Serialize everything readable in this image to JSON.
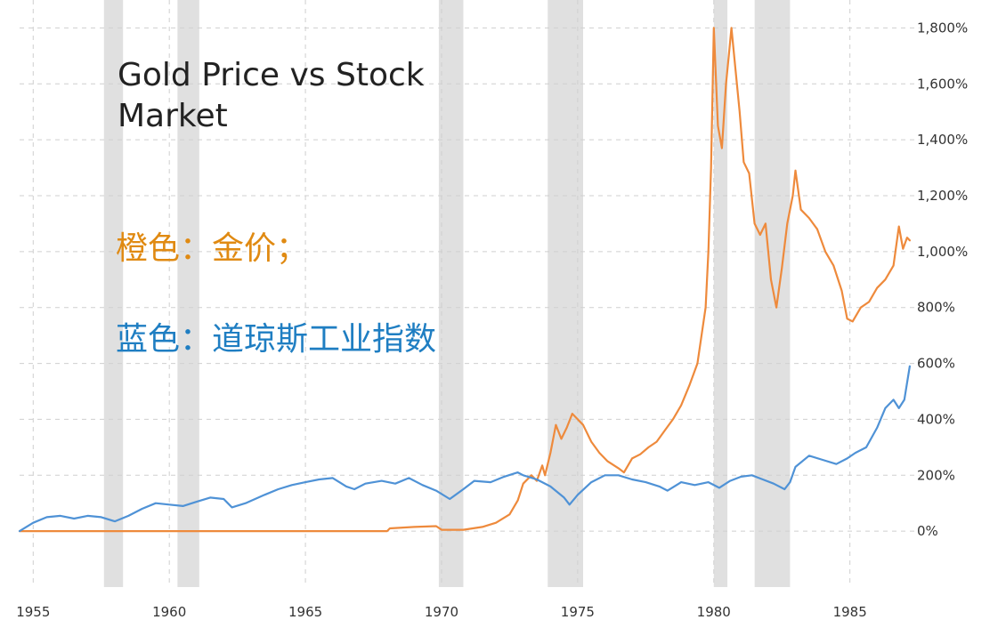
{
  "header": {
    "title": "Gold Price vs Stock Market"
  },
  "legend": {
    "gold_label": "橙色：金价；",
    "dow_label": "蓝色：道琼斯工业指数"
  },
  "colors": {
    "gold": "#ee8a3c",
    "dow": "#4f92d6",
    "recession": "#e0e0e0",
    "grid": "#cfcfcf",
    "gold_text": "#e08a12",
    "dow_text": "#1f7ec2"
  },
  "chart_data": {
    "type": "line",
    "title": "Gold Price vs Stock Market",
    "xlabel": "",
    "ylabel": "",
    "xlim": [
      1954.5,
      1987.3
    ],
    "ylim": [
      -200,
      1900
    ],
    "x_ticks": [
      "1955",
      "1960",
      "1965",
      "1970",
      "1975",
      "1980",
      "1985"
    ],
    "y_ticks": [
      "0%",
      "200%",
      "400%",
      "600%",
      "800%",
      "1,000%",
      "1,200%",
      "1,400%",
      "1,600%",
      "1,800%"
    ],
    "y_axis_side": "right",
    "grid": true,
    "recessions": [
      [
        1957.6,
        1958.3
      ],
      [
        1960.3,
        1961.1
      ],
      [
        1969.9,
        1970.8
      ],
      [
        1973.9,
        1975.2
      ],
      [
        1980.0,
        1980.5
      ],
      [
        1981.5,
        1982.8
      ]
    ],
    "series": [
      {
        "name": "橙色：金价",
        "color": "#ee8a3c",
        "points": [
          [
            1954.5,
            0
          ],
          [
            1960,
            0
          ],
          [
            1965,
            0
          ],
          [
            1968.0,
            0
          ],
          [
            1968.1,
            10
          ],
          [
            1969.0,
            15
          ],
          [
            1969.8,
            18
          ],
          [
            1970.0,
            5
          ],
          [
            1970.8,
            5
          ],
          [
            1971.5,
            15
          ],
          [
            1972.0,
            30
          ],
          [
            1972.5,
            60
          ],
          [
            1972.8,
            110
          ],
          [
            1973.0,
            170
          ],
          [
            1973.3,
            200
          ],
          [
            1973.5,
            180
          ],
          [
            1973.7,
            235
          ],
          [
            1973.8,
            200
          ],
          [
            1974.0,
            280
          ],
          [
            1974.2,
            380
          ],
          [
            1974.4,
            330
          ],
          [
            1974.6,
            370
          ],
          [
            1974.8,
            420
          ],
          [
            1975.0,
            400
          ],
          [
            1975.2,
            380
          ],
          [
            1975.5,
            320
          ],
          [
            1975.8,
            280
          ],
          [
            1976.1,
            250
          ],
          [
            1976.5,
            225
          ],
          [
            1976.7,
            210
          ],
          [
            1977.0,
            260
          ],
          [
            1977.3,
            275
          ],
          [
            1977.6,
            300
          ],
          [
            1977.9,
            320
          ],
          [
            1978.2,
            360
          ],
          [
            1978.5,
            400
          ],
          [
            1978.8,
            450
          ],
          [
            1979.1,
            520
          ],
          [
            1979.4,
            600
          ],
          [
            1979.7,
            800
          ],
          [
            1979.8,
            1000
          ],
          [
            1979.9,
            1300
          ],
          [
            1980.0,
            1800
          ],
          [
            1980.15,
            1450
          ],
          [
            1980.3,
            1370
          ],
          [
            1980.45,
            1600
          ],
          [
            1980.55,
            1700
          ],
          [
            1980.65,
            1800
          ],
          [
            1980.8,
            1650
          ],
          [
            1980.95,
            1500
          ],
          [
            1981.1,
            1320
          ],
          [
            1981.3,
            1280
          ],
          [
            1981.5,
            1100
          ],
          [
            1981.7,
            1060
          ],
          [
            1981.9,
            1100
          ],
          [
            1982.1,
            900
          ],
          [
            1982.3,
            800
          ],
          [
            1982.5,
            940
          ],
          [
            1982.7,
            1100
          ],
          [
            1982.9,
            1200
          ],
          [
            1983.0,
            1290
          ],
          [
            1983.2,
            1150
          ],
          [
            1983.5,
            1120
          ],
          [
            1983.8,
            1080
          ],
          [
            1984.1,
            1000
          ],
          [
            1984.4,
            950
          ],
          [
            1984.7,
            860
          ],
          [
            1984.9,
            760
          ],
          [
            1985.1,
            750
          ],
          [
            1985.4,
            800
          ],
          [
            1985.7,
            820
          ],
          [
            1986.0,
            870
          ],
          [
            1986.3,
            900
          ],
          [
            1986.6,
            950
          ],
          [
            1986.8,
            1090
          ],
          [
            1986.95,
            1010
          ],
          [
            1987.1,
            1050
          ],
          [
            1987.2,
            1040
          ]
        ]
      },
      {
        "name": "蓝色：道琼斯工业指数",
        "color": "#4f92d6",
        "points": [
          [
            1954.5,
            0
          ],
          [
            1955.0,
            30
          ],
          [
            1955.5,
            50
          ],
          [
            1956.0,
            55
          ],
          [
            1956.5,
            45
          ],
          [
            1957.0,
            55
          ],
          [
            1957.5,
            50
          ],
          [
            1958.0,
            35
          ],
          [
            1958.5,
            55
          ],
          [
            1959.0,
            80
          ],
          [
            1959.5,
            100
          ],
          [
            1960.0,
            95
          ],
          [
            1960.5,
            90
          ],
          [
            1961.0,
            105
          ],
          [
            1961.5,
            120
          ],
          [
            1962.0,
            115
          ],
          [
            1962.3,
            85
          ],
          [
            1962.8,
            100
          ],
          [
            1963.5,
            130
          ],
          [
            1964.0,
            150
          ],
          [
            1964.5,
            165
          ],
          [
            1965.0,
            175
          ],
          [
            1965.5,
            185
          ],
          [
            1966.0,
            190
          ],
          [
            1966.5,
            160
          ],
          [
            1966.8,
            150
          ],
          [
            1967.2,
            170
          ],
          [
            1967.8,
            180
          ],
          [
            1968.3,
            170
          ],
          [
            1968.8,
            190
          ],
          [
            1969.3,
            165
          ],
          [
            1969.8,
            145
          ],
          [
            1970.3,
            115
          ],
          [
            1970.8,
            150
          ],
          [
            1971.2,
            180
          ],
          [
            1971.8,
            175
          ],
          [
            1972.3,
            195
          ],
          [
            1972.8,
            210
          ],
          [
            1973.0,
            200
          ],
          [
            1973.5,
            185
          ],
          [
            1974.0,
            160
          ],
          [
            1974.5,
            120
          ],
          [
            1974.7,
            95
          ],
          [
            1975.0,
            130
          ],
          [
            1975.5,
            175
          ],
          [
            1976.0,
            200
          ],
          [
            1976.5,
            200
          ],
          [
            1977.0,
            185
          ],
          [
            1977.5,
            175
          ],
          [
            1978.0,
            160
          ],
          [
            1978.3,
            145
          ],
          [
            1978.8,
            175
          ],
          [
            1979.3,
            165
          ],
          [
            1979.8,
            175
          ],
          [
            1980.2,
            155
          ],
          [
            1980.6,
            180
          ],
          [
            1981.0,
            195
          ],
          [
            1981.4,
            200
          ],
          [
            1981.8,
            185
          ],
          [
            1982.2,
            170
          ],
          [
            1982.6,
            150
          ],
          [
            1982.8,
            175
          ],
          [
            1983.0,
            230
          ],
          [
            1983.5,
            270
          ],
          [
            1984.0,
            255
          ],
          [
            1984.5,
            240
          ],
          [
            1984.9,
            260
          ],
          [
            1985.2,
            280
          ],
          [
            1985.6,
            300
          ],
          [
            1986.0,
            370
          ],
          [
            1986.3,
            440
          ],
          [
            1986.6,
            470
          ],
          [
            1986.8,
            440
          ],
          [
            1987.0,
            470
          ],
          [
            1987.2,
            590
          ]
        ]
      }
    ]
  }
}
